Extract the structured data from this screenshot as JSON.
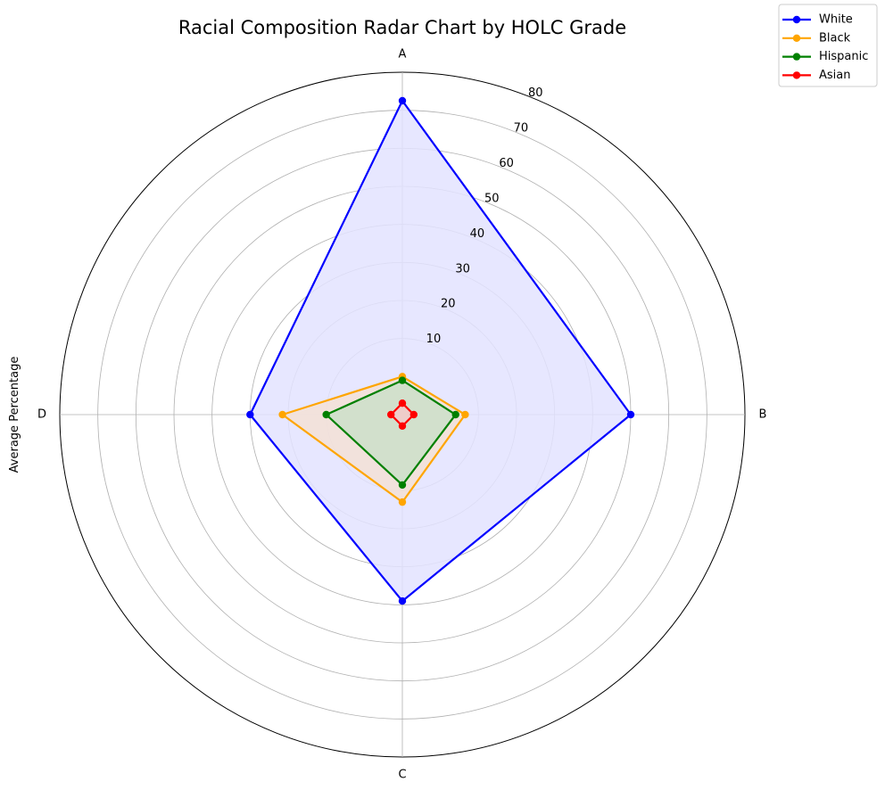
{
  "chart_data": {
    "type": "radar",
    "title": "Racial Composition Radar Chart by HOLC Grade",
    "ylabel": "Average Percentage",
    "categories": [
      "A",
      "B",
      "C",
      "D"
    ],
    "rlim": [
      -10,
      80
    ],
    "rticks": [
      10,
      20,
      30,
      40,
      50,
      60,
      70,
      80
    ],
    "grid": true,
    "legend_position": "top-right",
    "series": [
      {
        "name": "White",
        "color": "#0000ff",
        "fill": "#e3e3ff",
        "values": [
          72.5,
          50,
          39,
          30
        ]
      },
      {
        "name": "Black",
        "color": "#ffa500",
        "fill": "#f3e0d6",
        "values": [
          0.0,
          6.5,
          13,
          21.5
        ]
      },
      {
        "name": "Hispanic",
        "color": "#008000",
        "fill": "#cddfc9",
        "values": [
          -1.0,
          4,
          8.5,
          10
        ]
      },
      {
        "name": "Asian",
        "color": "#ff0000",
        "fill": "#f3c9c9",
        "values": [
          -7,
          -7,
          -7,
          -7
        ]
      }
    ]
  }
}
